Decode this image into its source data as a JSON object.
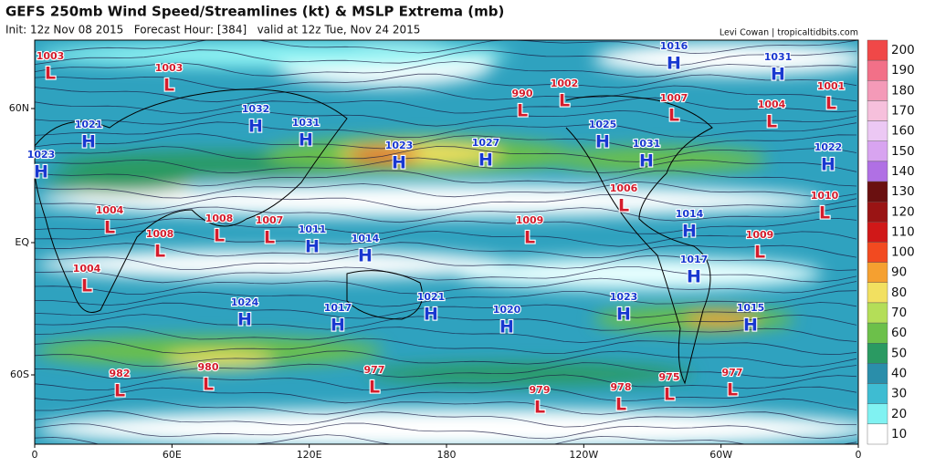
{
  "header": {
    "title": "GEFS 250mb Wind Speed/Streamlines (kt) & MSLP Extrema (mb)",
    "subtitle": "Init: 12z Nov 08 2015   Forecast Hour: [384]   valid at 12z Tue, Nov 24 2015",
    "credit": "Levi Cowan | tropicaltidbits.com"
  },
  "map": {
    "lon_labels": [
      "0",
      "60E",
      "120E",
      "180",
      "120W",
      "60W",
      "0"
    ],
    "lat_labels": [
      "60N",
      "EQ",
      "60S"
    ],
    "extrema": [
      {
        "letter": "L",
        "value": 1003
      },
      {
        "letter": "L",
        "value": 1003
      },
      {
        "letter": "H",
        "value": 1021
      },
      {
        "letter": "H",
        "value": 1023
      },
      {
        "letter": "H",
        "value": 1032
      },
      {
        "letter": "H",
        "value": 1031
      },
      {
        "letter": "H",
        "value": 1023
      },
      {
        "letter": "H",
        "value": 1027
      },
      {
        "letter": "L",
        "value": 990
      },
      {
        "letter": "L",
        "value": 1002
      },
      {
        "letter": "H",
        "value": 1016
      },
      {
        "letter": "L",
        "value": 1007
      },
      {
        "letter": "H",
        "value": 1025
      },
      {
        "letter": "H",
        "value": 1031
      },
      {
        "letter": "H",
        "value": 1031
      },
      {
        "letter": "L",
        "value": 1004
      },
      {
        "letter": "L",
        "value": 1001
      },
      {
        "letter": "H",
        "value": 1022
      },
      {
        "letter": "L",
        "value": 1010
      },
      {
        "letter": "L",
        "value": 1006
      },
      {
        "letter": "L",
        "value": 1004
      },
      {
        "letter": "L",
        "value": 1008
      },
      {
        "letter": "L",
        "value": 1007
      },
      {
        "letter": "H",
        "value": 1011
      },
      {
        "letter": "L",
        "value": 1008
      },
      {
        "letter": "H",
        "value": 1014
      },
      {
        "letter": "L",
        "value": 1009
      },
      {
        "letter": "H",
        "value": 1014
      },
      {
        "letter": "L",
        "value": 1009
      },
      {
        "letter": "L",
        "value": 1004
      },
      {
        "letter": "H",
        "value": 1017
      },
      {
        "letter": "H",
        "value": 1024
      },
      {
        "letter": "H",
        "value": 1017
      },
      {
        "letter": "H",
        "value": 1021
      },
      {
        "letter": "H",
        "value": 1020
      },
      {
        "letter": "H",
        "value": 1023
      },
      {
        "letter": "H",
        "value": 1015
      },
      {
        "letter": "L",
        "value": 982
      },
      {
        "letter": "L",
        "value": 980
      },
      {
        "letter": "L",
        "value": 977
      },
      {
        "letter": "L",
        "value": 979
      },
      {
        "letter": "L",
        "value": 978
      },
      {
        "letter": "L",
        "value": 975
      },
      {
        "letter": "L",
        "value": 977
      }
    ]
  },
  "colorbar": {
    "ticks": [
      200,
      190,
      180,
      170,
      160,
      150,
      140,
      130,
      120,
      110,
      100,
      90,
      80,
      70,
      60,
      50,
      40,
      30,
      20,
      10
    ],
    "colors": [
      "#f04848",
      "#f27088",
      "#f49ab8",
      "#f6c0dc",
      "#ecc8f4",
      "#d8a4f0",
      "#b070e4",
      "#6a1010",
      "#9a1414",
      "#d01818",
      "#f24a20",
      "#f5a030",
      "#f2e060",
      "#b4de58",
      "#6cc04a",
      "#2a9a62",
      "#2a8eaa",
      "#3ebcd2",
      "#80f2f2",
      "#ffffff"
    ]
  }
}
